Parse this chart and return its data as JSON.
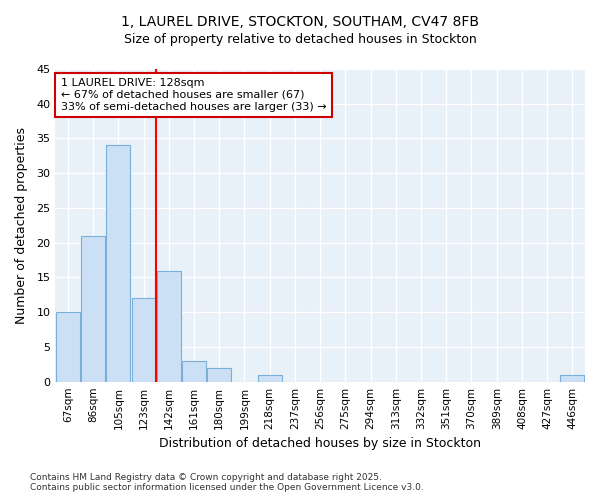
{
  "title_line1": "1, LAUREL DRIVE, STOCKTON, SOUTHAM, CV47 8FB",
  "title_line2": "Size of property relative to detached houses in Stockton",
  "xlabel": "Distribution of detached houses by size in Stockton",
  "ylabel": "Number of detached properties",
  "categories": [
    "67sqm",
    "86sqm",
    "105sqm",
    "123sqm",
    "142sqm",
    "161sqm",
    "180sqm",
    "199sqm",
    "218sqm",
    "237sqm",
    "256sqm",
    "275sqm",
    "294sqm",
    "313sqm",
    "332sqm",
    "351sqm",
    "370sqm",
    "389sqm",
    "408sqm",
    "427sqm",
    "446sqm"
  ],
  "values": [
    10,
    21,
    34,
    12,
    16,
    3,
    2,
    0,
    1,
    0,
    0,
    0,
    0,
    0,
    0,
    0,
    0,
    0,
    0,
    0,
    1
  ],
  "bar_color": "#cce0f5",
  "bar_edge_color": "#7ab0d8",
  "background_color": "#ffffff",
  "plot_bg_color": "#e8f0f8",
  "grid_color": "#ffffff",
  "red_line_x": 3.5,
  "annotation_text": "1 LAUREL DRIVE: 128sqm\n← 67% of detached houses are smaller (67)\n33% of semi-detached houses are larger (33) →",
  "annotation_box_color": "#ffffff",
  "annotation_box_edge_color": "#cc0000",
  "ylim": [
    0,
    45
  ],
  "yticks": [
    0,
    5,
    10,
    15,
    20,
    25,
    30,
    35,
    40,
    45
  ],
  "footer_line1": "Contains HM Land Registry data © Crown copyright and database right 2025.",
  "footer_line2": "Contains public sector information licensed under the Open Government Licence v3.0."
}
